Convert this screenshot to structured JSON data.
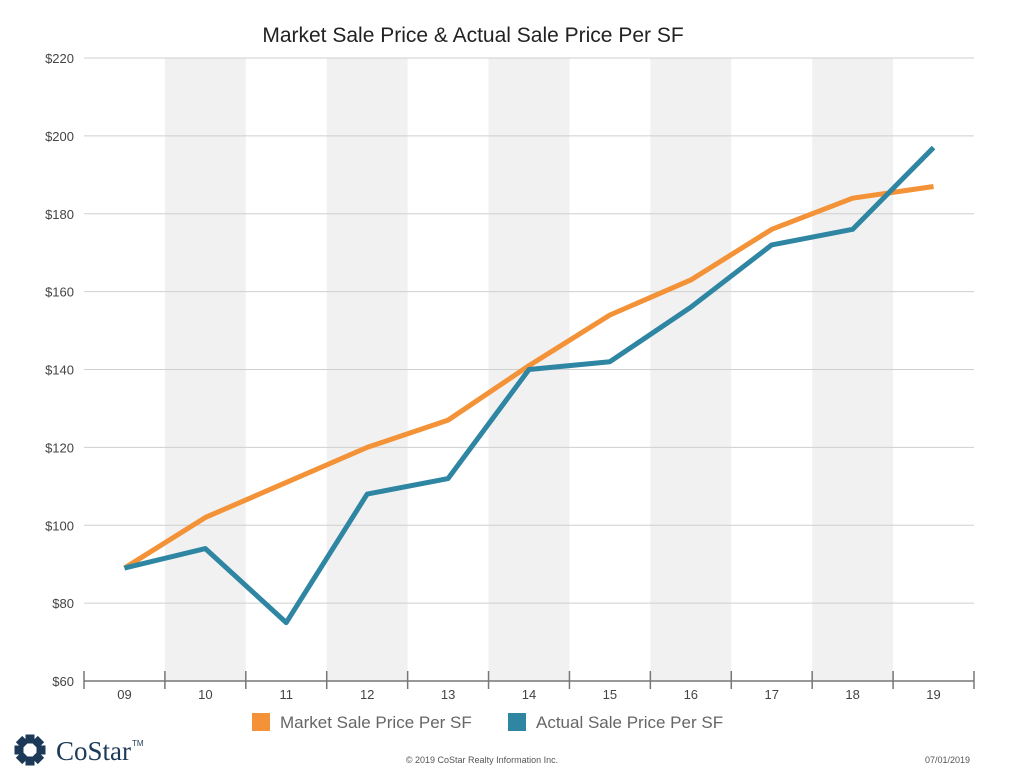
{
  "chart_data": {
    "type": "line",
    "title": "Market Sale Price & Actual Sale Price Per SF",
    "categories": [
      "09",
      "10",
      "11",
      "12",
      "13",
      "14",
      "15",
      "16",
      "17",
      "18",
      "19"
    ],
    "ylim": [
      60,
      220
    ],
    "y_ticks": [
      "$220",
      "$200",
      "$180",
      "$160",
      "$140",
      "$120",
      "$100",
      "$80",
      "$60"
    ],
    "y_tick_values": [
      220,
      200,
      180,
      160,
      140,
      120,
      100,
      80,
      60
    ],
    "series": [
      {
        "name": "Market Sale Price Per SF",
        "color": "#f39237",
        "values": [
          89,
          102,
          111,
          120,
          127,
          141,
          154,
          163,
          176,
          184,
          187
        ]
      },
      {
        "name": "Actual Sale Price Per SF",
        "color": "#2e86a3",
        "values": [
          89,
          94,
          75,
          108,
          112,
          140,
          142,
          156,
          172,
          176,
          197
        ]
      }
    ],
    "legend": "bottom",
    "grid": true
  },
  "footer": {
    "copyright": "© 2019 CoStar Realty Information Inc.",
    "date": "07/01/2019"
  },
  "brand": {
    "name": "CoStar",
    "tm": "TM",
    "color": "#1c3a57"
  }
}
